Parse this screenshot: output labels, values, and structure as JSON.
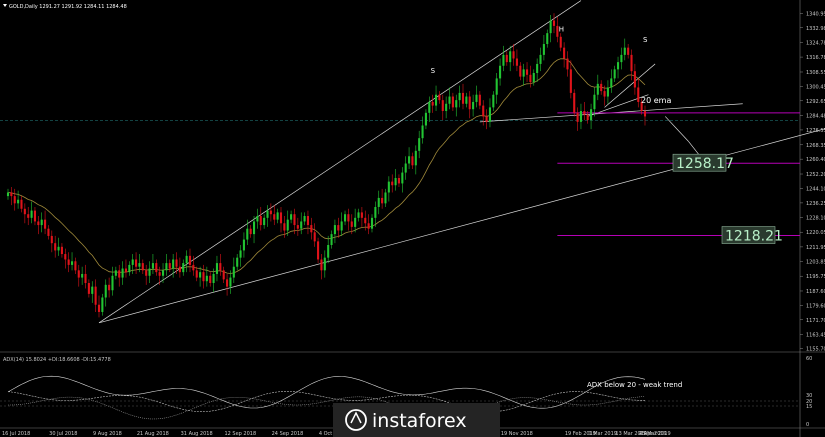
{
  "chart_data": {
    "type": "candlestick",
    "symbol_line": "GOLD,Daily  1291.27 1291.92 1284.11 1284.48",
    "price_axis": {
      "min": 1155,
      "max": 1345,
      "labels": [
        "1340.95",
        "1332.98",
        "1324.78",
        "1316.78",
        "1308.55",
        "1300.45",
        "1292.65",
        "1284.48",
        "1276.55",
        "1268.35",
        "1260.40",
        "1252.20",
        "1244.10",
        "1236.25",
        "1228.10",
        "1220.05",
        "1211.95",
        "1203.85",
        "1195.75",
        "1187.60",
        "1179.60",
        "1171.70",
        "1163.45",
        "1155.70"
      ]
    },
    "date_labels": [
      "16 Jul 2018",
      "30 Jul 2018",
      "9 Aug 2018",
      "21 Aug 2018",
      "31 Aug 2018",
      "12 Sep 2018",
      "24 Sep 2018",
      "4 Oct 2018",
      "16 Oct 2018",
      "26 Oct 2018",
      "7 Nov 2018",
      "19 Nov 2018",
      "19 Feb 2019",
      "1 Mar 2019",
      "13 Mar 2019",
      "25 Mar 2019",
      "4 Apr 2019"
    ],
    "closes": [
      1242,
      1240,
      1236,
      1238,
      1233,
      1230,
      1228,
      1232,
      1226,
      1224,
      1227,
      1222,
      1218,
      1214,
      1210,
      1212,
      1208,
      1205,
      1202,
      1204,
      1199,
      1195,
      1197,
      1192,
      1186,
      1190,
      1180,
      1176,
      1184,
      1191,
      1188,
      1196,
      1199,
      1195,
      1200,
      1198,
      1202,
      1205,
      1201,
      1203,
      1199,
      1196,
      1200,
      1203,
      1198,
      1196,
      1199,
      1203,
      1200,
      1205,
      1201,
      1198,
      1203,
      1207,
      1202,
      1199,
      1195,
      1198,
      1193,
      1196,
      1192,
      1197,
      1203,
      1199,
      1194,
      1190,
      1195,
      1201,
      1206,
      1210,
      1216,
      1222,
      1219,
      1226,
      1229,
      1224,
      1228,
      1232,
      1230,
      1227,
      1231,
      1225,
      1221,
      1227,
      1230,
      1224,
      1222,
      1226,
      1229,
      1224,
      1220,
      1215,
      1205,
      1199,
      1206,
      1213,
      1219,
      1224,
      1221,
      1226,
      1230,
      1226,
      1223,
      1228,
      1231,
      1228,
      1225,
      1222,
      1228,
      1234,
      1239,
      1236,
      1242,
      1248,
      1246,
      1250,
      1247,
      1253,
      1258,
      1262,
      1257,
      1265,
      1272,
      1279,
      1286,
      1292,
      1290,
      1296,
      1293,
      1287,
      1291,
      1295,
      1289,
      1293,
      1297,
      1291,
      1295,
      1288,
      1292,
      1296,
      1290,
      1284,
      1281,
      1289,
      1296,
      1305,
      1312,
      1318,
      1314,
      1320,
      1316,
      1312,
      1306,
      1310,
      1307,
      1303,
      1308,
      1313,
      1318,
      1324,
      1330,
      1337,
      1334,
      1328,
      1322,
      1316,
      1310,
      1297,
      1286,
      1281,
      1287,
      1285,
      1282,
      1288,
      1296,
      1302,
      1298,
      1295,
      1300,
      1305,
      1310,
      1314,
      1318,
      1322,
      1318,
      1309,
      1300,
      1292,
      1287,
      1284
    ],
    "ema_label": "20 ema",
    "pattern_labels": [
      "S",
      "H",
      "S"
    ],
    "levels": [
      {
        "value": 1258.17,
        "label": "1258.17"
      },
      {
        "value": 1218.21,
        "label": "1218.21"
      }
    ],
    "adx": {
      "label": "ADX(14) 15.8024 +DI:18.6608 -DI:15.4778",
      "scale": [
        "60",
        "30",
        "20",
        "15",
        "0"
      ],
      "note": "ADX below 20 - weak trend"
    }
  },
  "colors": {
    "background": "#000000",
    "bull": "#22c533",
    "bear": "#e0131a",
    "ema": "#a08a3a",
    "trendline": "#d9d9d9",
    "level_line": "#b500b5",
    "current_price": "#1e6a6a",
    "logo_bg": "#242424"
  },
  "logo": {
    "text": "instaforex"
  }
}
